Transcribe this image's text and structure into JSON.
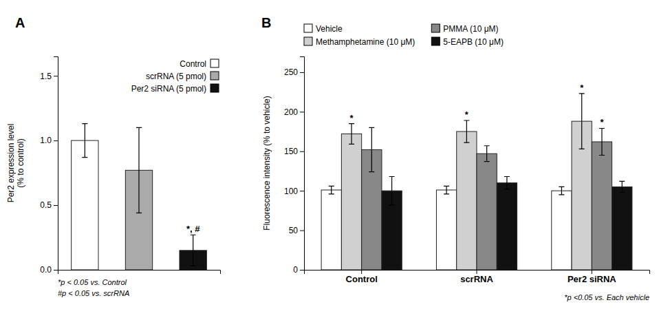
{
  "chart_data": [
    {
      "type": "bar",
      "title": "A",
      "y_label": "Per2 expression level\n(% to control)",
      "categories": [
        null,
        null,
        null
      ],
      "series": [
        {
          "name": "Control",
          "color": "white",
          "values": [
            1.0,
            null,
            null
          ],
          "errors": [
            0.13,
            null,
            null
          ]
        },
        {
          "name": "scrRNA (5 pmol)",
          "color": "#aaaaaa",
          "values": [
            null,
            0.77,
            null
          ],
          "errors": [
            null,
            0.33,
            null
          ]
        },
        {
          "name": "Per2 siRNA (5 pmol)",
          "color": "#111111",
          "values": [
            null,
            null,
            0.15
          ],
          "errors": [
            null,
            null,
            0.12
          ],
          "stars": [
            null,
            null,
            "*, #"
          ]
        }
      ],
      "ylim": [
        0,
        1.65
      ],
      "yticks": [
        {
          "value": 0.0,
          "label": "0.0"
        },
        {
          "value": 0.5,
          "label": "0.5"
        },
        {
          "value": 1.0,
          "label": "1.0"
        },
        {
          "value": 1.5,
          "label": "1.5"
        }
      ],
      "grid": false,
      "legend": "upper right",
      "annotations": [
        "*p < 0.05 vs. Control",
        "#p < 0.05 vs. scrRNA"
      ]
    },
    {
      "type": "bar",
      "title": "B",
      "y_label": "Fluorescence intensity (% to vehicle)",
      "categories": [
        "Control",
        "scrRNA",
        "Per2 siRNA"
      ],
      "series": [
        {
          "name": "Vehicle",
          "color": "white",
          "values": [
            101,
            101,
            100
          ],
          "errors": [
            5,
            5,
            5
          ]
        },
        {
          "name": "Methamphetamine (10 μM)",
          "color": "#d0d0d0",
          "values": [
            172,
            175,
            188
          ],
          "errors": [
            13,
            14,
            35
          ],
          "stars": [
            "*",
            "*",
            "*"
          ]
        },
        {
          "name": "PMMA (10 μM)",
          "color": "#888888",
          "values": [
            152,
            147,
            162
          ],
          "errors": [
            28,
            10,
            17
          ],
          "stars": [
            null,
            null,
            "*"
          ]
        },
        {
          "name": "5-EAPB (10 μM)",
          "color": "#111111",
          "values": [
            100,
            110,
            105
          ],
          "errors": [
            18,
            8,
            7
          ]
        }
      ],
      "ylim": [
        0,
        270
      ],
      "yticks": [
        0,
        50,
        100,
        150,
        200,
        250
      ],
      "grid": false,
      "legend": "top",
      "annotations": [
        "*p <0.05 vs. Each vehicle"
      ]
    }
  ]
}
